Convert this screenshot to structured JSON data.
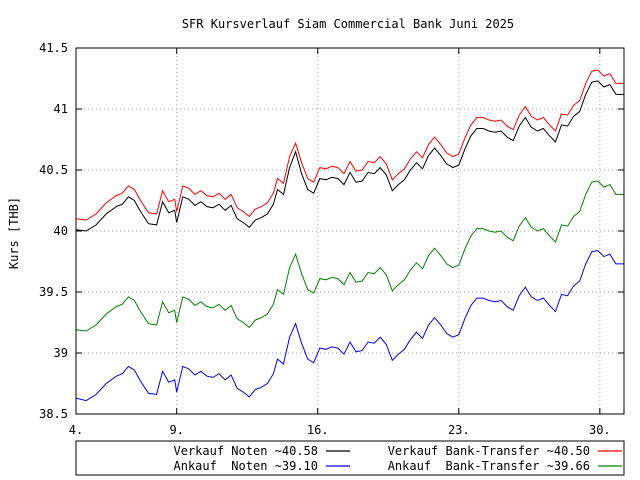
{
  "chart_data": {
    "type": "line",
    "title": "SFR Kursverlauf Siam Commercial Bank Juni 2025",
    "ylabel": "Kurs [THB]",
    "xlabel": "",
    "ylim": [
      38.5,
      41.5
    ],
    "yticks": [
      "38.5",
      "39",
      "39.5",
      "40",
      "40.5",
      "41",
      "41.5"
    ],
    "xlim": [
      4,
      31.2
    ],
    "xticks": [
      {
        "value": 4,
        "label": "4."
      },
      {
        "value": 9,
        "label": "9."
      },
      {
        "value": 16,
        "label": "16."
      },
      {
        "value": 23,
        "label": "23."
      },
      {
        "value": 30,
        "label": "30."
      }
    ],
    "grid": true,
    "legend_position": "bottom",
    "series": [
      {
        "name": "Verkauf Noten ~40.58",
        "color": "#000000",
        "x": [
          4,
          4.5,
          5,
          5.5,
          6,
          6.3,
          6.6,
          6.9,
          7.2,
          7.6,
          8.0,
          8.3,
          8.6,
          8.9,
          9.0,
          9.3,
          9.6,
          9.9,
          10.2,
          10.5,
          10.8,
          11.1,
          11.4,
          11.7,
          12.0,
          12.3,
          12.6,
          12.9,
          13.2,
          13.5,
          13.8,
          14.0,
          14.3,
          14.6,
          14.9,
          15.2,
          15.5,
          15.8,
          16.1,
          16.4,
          16.7,
          17.0,
          17.3,
          17.6,
          17.9,
          18.2,
          18.5,
          18.8,
          19.1,
          19.4,
          19.7,
          20.0,
          20.3,
          20.6,
          20.9,
          21.2,
          21.5,
          21.8,
          22.1,
          22.4,
          22.7,
          23.0,
          23.3,
          23.6,
          23.9,
          24.2,
          24.5,
          24.8,
          25.1,
          25.4,
          25.7,
          26.0,
          26.3,
          26.6,
          26.9,
          27.2,
          27.5,
          27.8,
          28.1,
          28.4,
          28.7,
          29.0,
          29.3,
          29.6,
          29.9,
          30.2,
          30.5,
          30.8,
          31.2
        ],
        "values": [
          40.01,
          40.0,
          40.05,
          40.14,
          40.2,
          40.22,
          40.28,
          40.25,
          40.16,
          40.06,
          40.05,
          40.24,
          40.15,
          40.17,
          40.07,
          40.28,
          40.26,
          40.21,
          40.24,
          40.2,
          40.19,
          40.22,
          40.17,
          40.21,
          40.1,
          40.07,
          40.03,
          40.09,
          40.11,
          40.14,
          40.22,
          40.34,
          40.3,
          40.52,
          40.65,
          40.47,
          40.34,
          40.31,
          40.43,
          40.42,
          40.44,
          40.43,
          40.38,
          40.48,
          40.4,
          40.41,
          40.48,
          40.47,
          40.52,
          40.46,
          40.33,
          40.38,
          40.42,
          40.5,
          40.56,
          40.51,
          40.62,
          40.68,
          40.62,
          40.55,
          40.52,
          40.54,
          40.67,
          40.78,
          40.84,
          40.84,
          40.82,
          40.81,
          40.82,
          40.77,
          40.74,
          40.86,
          40.93,
          40.85,
          40.82,
          40.84,
          40.78,
          40.73,
          40.87,
          40.86,
          40.94,
          40.98,
          41.12,
          41.22,
          41.23,
          41.18,
          41.2,
          41.12,
          41.12
        ]
      },
      {
        "name": "Verkauf Bank-Transfer ~40.50",
        "color": "#ff0000",
        "x": [
          4,
          4.5,
          5,
          5.5,
          6,
          6.3,
          6.6,
          6.9,
          7.2,
          7.6,
          8.0,
          8.3,
          8.6,
          8.9,
          9.0,
          9.3,
          9.6,
          9.9,
          10.2,
          10.5,
          10.8,
          11.1,
          11.4,
          11.7,
          12.0,
          12.3,
          12.6,
          12.9,
          13.2,
          13.5,
          13.8,
          14.0,
          14.3,
          14.6,
          14.9,
          15.2,
          15.5,
          15.8,
          16.1,
          16.4,
          16.7,
          17.0,
          17.3,
          17.6,
          17.9,
          18.2,
          18.5,
          18.8,
          19.1,
          19.4,
          19.7,
          20.0,
          20.3,
          20.6,
          20.9,
          21.2,
          21.5,
          21.8,
          22.1,
          22.4,
          22.7,
          23.0,
          23.3,
          23.6,
          23.9,
          24.2,
          24.5,
          24.8,
          25.1,
          25.4,
          25.7,
          26.0,
          26.3,
          26.6,
          26.9,
          27.2,
          27.5,
          27.8,
          28.1,
          28.4,
          28.7,
          29.0,
          29.3,
          29.6,
          29.9,
          30.2,
          30.5,
          30.8,
          31.2
        ],
        "values": [
          40.1,
          40.09,
          40.14,
          40.23,
          40.29,
          40.31,
          40.37,
          40.34,
          40.25,
          40.15,
          40.14,
          40.33,
          40.24,
          40.26,
          40.16,
          40.37,
          40.35,
          40.3,
          40.33,
          40.29,
          40.28,
          40.31,
          40.26,
          40.3,
          40.19,
          40.16,
          40.12,
          40.18,
          40.2,
          40.23,
          40.31,
          40.43,
          40.39,
          40.61,
          40.72,
          40.56,
          40.43,
          40.4,
          40.52,
          40.51,
          40.53,
          40.52,
          40.47,
          40.57,
          40.49,
          40.5,
          40.57,
          40.56,
          40.61,
          40.55,
          40.42,
          40.47,
          40.51,
          40.59,
          40.65,
          40.6,
          40.71,
          40.77,
          40.71,
          40.64,
          40.61,
          40.63,
          40.76,
          40.87,
          40.93,
          40.93,
          40.91,
          40.9,
          40.91,
          40.86,
          40.83,
          40.95,
          41.02,
          40.94,
          40.91,
          40.93,
          40.87,
          40.82,
          40.96,
          40.95,
          41.03,
          41.07,
          41.21,
          41.31,
          41.32,
          41.27,
          41.29,
          41.21,
          41.21
        ]
      },
      {
        "name": "Ankauf  Noten ~39.10",
        "color": "#0000ff",
        "x": [
          4,
          4.5,
          5,
          5.5,
          6,
          6.3,
          6.6,
          6.9,
          7.2,
          7.6,
          8.0,
          8.3,
          8.6,
          8.9,
          9.0,
          9.3,
          9.6,
          9.9,
          10.2,
          10.5,
          10.8,
          11.1,
          11.4,
          11.7,
          12.0,
          12.3,
          12.6,
          12.9,
          13.2,
          13.5,
          13.8,
          14.0,
          14.3,
          14.6,
          14.9,
          15.2,
          15.5,
          15.8,
          16.1,
          16.4,
          16.7,
          17.0,
          17.3,
          17.6,
          17.9,
          18.2,
          18.5,
          18.8,
          19.1,
          19.4,
          19.7,
          20.0,
          20.3,
          20.6,
          20.9,
          21.2,
          21.5,
          21.8,
          22.1,
          22.4,
          22.7,
          23.0,
          23.3,
          23.6,
          23.9,
          24.2,
          24.5,
          24.8,
          25.1,
          25.4,
          25.7,
          26.0,
          26.3,
          26.6,
          26.9,
          27.2,
          27.5,
          27.8,
          28.1,
          28.4,
          28.7,
          29.0,
          29.3,
          29.6,
          29.9,
          30.2,
          30.5,
          30.8,
          31.2
        ],
        "values": [
          38.63,
          38.61,
          38.66,
          38.75,
          38.81,
          38.83,
          38.89,
          38.86,
          38.77,
          38.67,
          38.66,
          38.85,
          38.76,
          38.78,
          38.68,
          38.89,
          38.87,
          38.82,
          38.85,
          38.81,
          38.8,
          38.83,
          38.78,
          38.82,
          38.71,
          38.68,
          38.64,
          38.7,
          38.72,
          38.75,
          38.83,
          38.95,
          38.91,
          39.13,
          39.24,
          39.08,
          38.95,
          38.92,
          39.04,
          39.03,
          39.05,
          39.04,
          38.99,
          39.09,
          39.01,
          39.02,
          39.09,
          39.08,
          39.13,
          39.07,
          38.94,
          38.99,
          39.03,
          39.11,
          39.17,
          39.12,
          39.23,
          39.29,
          39.23,
          39.16,
          39.13,
          39.15,
          39.28,
          39.39,
          39.45,
          39.45,
          39.43,
          39.42,
          39.43,
          39.38,
          39.35,
          39.47,
          39.54,
          39.46,
          39.43,
          39.45,
          39.39,
          39.34,
          39.48,
          39.47,
          39.55,
          39.59,
          39.73,
          39.83,
          39.84,
          39.79,
          39.81,
          39.73,
          39.73
        ]
      },
      {
        "name": "Ankauf  Bank-Transfer ~39.66",
        "color": "#008000",
        "x": [
          4,
          4.5,
          5,
          5.5,
          6,
          6.3,
          6.6,
          6.9,
          7.2,
          7.6,
          8.0,
          8.3,
          8.6,
          8.9,
          9.0,
          9.3,
          9.6,
          9.9,
          10.2,
          10.5,
          10.8,
          11.1,
          11.4,
          11.7,
          12.0,
          12.3,
          12.6,
          12.9,
          13.2,
          13.5,
          13.8,
          14.0,
          14.3,
          14.6,
          14.9,
          15.2,
          15.5,
          15.8,
          16.1,
          16.4,
          16.7,
          17.0,
          17.3,
          17.6,
          17.9,
          18.2,
          18.5,
          18.8,
          19.1,
          19.4,
          19.7,
          20.0,
          20.3,
          20.6,
          20.9,
          21.2,
          21.5,
          21.8,
          22.1,
          22.4,
          22.7,
          23.0,
          23.3,
          23.6,
          23.9,
          24.2,
          24.5,
          24.8,
          25.1,
          25.4,
          25.7,
          26.0,
          26.3,
          26.6,
          26.9,
          27.2,
          27.5,
          27.8,
          28.1,
          28.4,
          28.7,
          29.0,
          29.3,
          29.6,
          29.9,
          30.2,
          30.5,
          30.8,
          31.2
        ],
        "values": [
          39.19,
          39.18,
          39.23,
          39.32,
          39.38,
          39.4,
          39.46,
          39.43,
          39.34,
          39.24,
          39.23,
          39.42,
          39.33,
          39.35,
          39.25,
          39.46,
          39.44,
          39.39,
          39.42,
          39.38,
          39.37,
          39.4,
          39.35,
          39.39,
          39.28,
          39.25,
          39.21,
          39.27,
          39.29,
          39.32,
          39.4,
          39.52,
          39.48,
          39.7,
          39.81,
          39.65,
          39.52,
          39.49,
          39.61,
          39.6,
          39.62,
          39.61,
          39.56,
          39.66,
          39.58,
          39.59,
          39.66,
          39.65,
          39.7,
          39.64,
          39.51,
          39.56,
          39.6,
          39.68,
          39.74,
          39.69,
          39.8,
          39.86,
          39.8,
          39.73,
          39.7,
          39.72,
          39.85,
          39.96,
          40.02,
          40.02,
          40.0,
          39.99,
          40.0,
          39.95,
          39.92,
          40.04,
          40.11,
          40.03,
          40.0,
          40.02,
          39.96,
          39.91,
          40.05,
          40.04,
          40.12,
          40.16,
          40.3,
          40.4,
          40.41,
          40.36,
          40.38,
          40.3,
          40.3
        ]
      }
    ]
  }
}
